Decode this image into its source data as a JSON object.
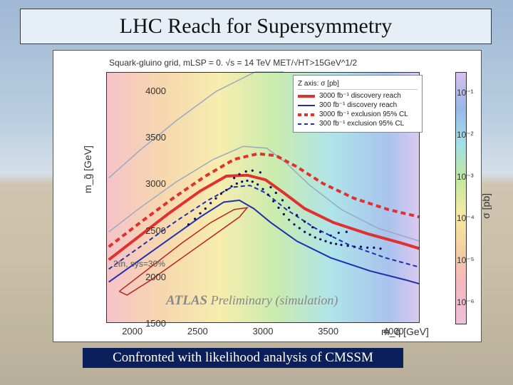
{
  "title": "LHC Reach for Supersymmetry",
  "caption": "Confronted with likelihood analysis of CMSSM",
  "chart": {
    "type": "scatter-contour",
    "subtitle": "Squark-gluino grid, mLSP = 0.    √s = 14 TeV    MET/√HT>15GeV^1/2",
    "xlabel": "m_q̃ [GeV]",
    "ylabel": "m_g̃ [GeV]",
    "color_label": "σ [pb]",
    "xlim": [
      1800,
      4200
    ],
    "ylim": [
      1500,
      4200
    ],
    "xticks": [
      2000,
      2500,
      3000,
      3500,
      4000
    ],
    "yticks": [
      1500,
      2000,
      2500,
      3000,
      3500,
      4000
    ],
    "cbar_ticks": [
      "10⁻¹",
      "10⁻²",
      "10⁻³",
      "10⁻⁴",
      "10⁻⁵",
      "10⁻⁶"
    ],
    "background_colors": [
      "#f5b8c0",
      "#f5d0a0",
      "#f5eaa0",
      "#c0e8a0",
      "#a0dfe6",
      "#9ab8ea",
      "#d6c0ef"
    ],
    "legend": {
      "header": "Z axis:          σ [pb]",
      "items": [
        {
          "label": "3000 fb⁻¹ discovery reach",
          "color": "#e03030",
          "style": "solid",
          "width": 4
        },
        {
          "label": "300 fb⁻¹ discovery reach",
          "color": "#2030b0",
          "style": "solid",
          "width": 2
        },
        {
          "label": "3000 fb⁻¹ exclusion 95% CL",
          "color": "#e03030",
          "style": "dashed",
          "width": 4
        },
        {
          "label": "300 fb⁻¹ exclusion 95% CL",
          "color": "#2030b0",
          "style": "dashed",
          "width": 2
        }
      ]
    },
    "atlas_text": "Preliminary (simulation)",
    "sys_text": "2ℓn, sys=30%",
    "curves": {
      "red_solid": [
        [
          1820,
          2180
        ],
        [
          2050,
          2430
        ],
        [
          2280,
          2680
        ],
        [
          2520,
          2920
        ],
        [
          2720,
          3080
        ],
        [
          2880,
          3090
        ],
        [
          3020,
          3040
        ],
        [
          3160,
          2900
        ],
        [
          3320,
          2730
        ],
        [
          3540,
          2580
        ],
        [
          3800,
          2460
        ],
        [
          4060,
          2360
        ],
        [
          4200,
          2300
        ]
      ],
      "blue_solid": [
        [
          1820,
          1940
        ],
        [
          2060,
          2180
        ],
        [
          2300,
          2420
        ],
        [
          2520,
          2640
        ],
        [
          2700,
          2800
        ],
        [
          2820,
          2820
        ],
        [
          2930,
          2730
        ],
        [
          3060,
          2580
        ],
        [
          3260,
          2380
        ],
        [
          3520,
          2200
        ],
        [
          3820,
          2060
        ],
        [
          4100,
          1960
        ],
        [
          4200,
          1920
        ]
      ],
      "red_dash": [
        [
          1820,
          2320
        ],
        [
          2060,
          2580
        ],
        [
          2320,
          2850
        ],
        [
          2560,
          3080
        ],
        [
          2780,
          3260
        ],
        [
          2960,
          3320
        ],
        [
          3100,
          3300
        ],
        [
          3260,
          3180
        ],
        [
          3460,
          3000
        ],
        [
          3700,
          2840
        ],
        [
          3960,
          2720
        ],
        [
          4200,
          2640
        ]
      ],
      "blue_dash": [
        [
          1820,
          2080
        ],
        [
          2080,
          2340
        ],
        [
          2340,
          2600
        ],
        [
          2580,
          2820
        ],
        [
          2760,
          2960
        ],
        [
          2900,
          2980
        ],
        [
          3020,
          2900
        ],
        [
          3180,
          2720
        ],
        [
          3400,
          2520
        ],
        [
          3660,
          2340
        ],
        [
          3940,
          2200
        ],
        [
          4200,
          2100
        ]
      ],
      "grey_outer": [
        [
          1820,
          3060
        ],
        [
          2060,
          3360
        ],
        [
          2340,
          3680
        ],
        [
          2640,
          3990
        ],
        [
          2940,
          4200
        ],
        [
          3160,
          4200
        ]
      ],
      "grey_inner": [
        [
          1820,
          2480
        ],
        [
          2060,
          2740
        ],
        [
          2340,
          3020
        ],
        [
          2620,
          3260
        ],
        [
          2850,
          3400
        ],
        [
          3030,
          3380
        ],
        [
          3180,
          3220
        ],
        [
          3360,
          2980
        ],
        [
          3600,
          2720
        ],
        [
          3880,
          2520
        ],
        [
          4200,
          2380
        ]
      ],
      "red_blob": [
        [
          1900,
          1840
        ],
        [
          2140,
          2100
        ],
        [
          2380,
          2360
        ],
        [
          2600,
          2580
        ],
        [
          2780,
          2720
        ],
        [
          2880,
          2740
        ],
        [
          2820,
          2640
        ],
        [
          2620,
          2440
        ],
        [
          2380,
          2200
        ],
        [
          2140,
          1960
        ],
        [
          1960,
          1800
        ],
        [
          1900,
          1840
        ]
      ]
    },
    "scatter_color": "#0a0a60",
    "scatter": [
      [
        2430,
        2560
      ],
      [
        2480,
        2620
      ],
      [
        2520,
        2680
      ],
      [
        2560,
        2730
      ],
      [
        2600,
        2790
      ],
      [
        2640,
        2840
      ],
      [
        2680,
        2890
      ],
      [
        2720,
        2930
      ],
      [
        2760,
        2970
      ],
      [
        2800,
        3000
      ],
      [
        2840,
        3020
      ],
      [
        2880,
        3030
      ],
      [
        2920,
        3020
      ],
      [
        2960,
        2990
      ],
      [
        3000,
        2940
      ],
      [
        3040,
        2880
      ],
      [
        3080,
        2810
      ],
      [
        3120,
        2740
      ],
      [
        3160,
        2670
      ],
      [
        3200,
        2610
      ],
      [
        3240,
        2560
      ],
      [
        3280,
        2520
      ],
      [
        3320,
        2480
      ],
      [
        3360,
        2450
      ],
      [
        3400,
        2420
      ],
      [
        3440,
        2400
      ],
      [
        3480,
        2380
      ],
      [
        3520,
        2360
      ],
      [
        3560,
        2350
      ],
      [
        3600,
        2340
      ],
      [
        3650,
        2330
      ],
      [
        3700,
        2320
      ],
      [
        3750,
        2320
      ],
      [
        3800,
        2310
      ],
      [
        3850,
        2310
      ],
      [
        3900,
        2300
      ],
      [
        3060,
        2960
      ],
      [
        3100,
        2900
      ],
      [
        3150,
        2820
      ],
      [
        3200,
        2740
      ],
      [
        3260,
        2660
      ],
      [
        3320,
        2590
      ],
      [
        3380,
        2530
      ],
      [
        3440,
        2480
      ],
      [
        2780,
        3060
      ],
      [
        2820,
        3100
      ],
      [
        2870,
        3130
      ],
      [
        2920,
        3140
      ],
      [
        2980,
        3120
      ],
      [
        3520,
        2440
      ],
      [
        3580,
        2470
      ],
      [
        3640,
        2480
      ]
    ]
  },
  "colors": {
    "title_bg": "#e6eff5",
    "caption_bg": "#0b1f5a",
    "red": "#e03030",
    "blue": "#2030b0",
    "grey": "#9aa8c4"
  }
}
